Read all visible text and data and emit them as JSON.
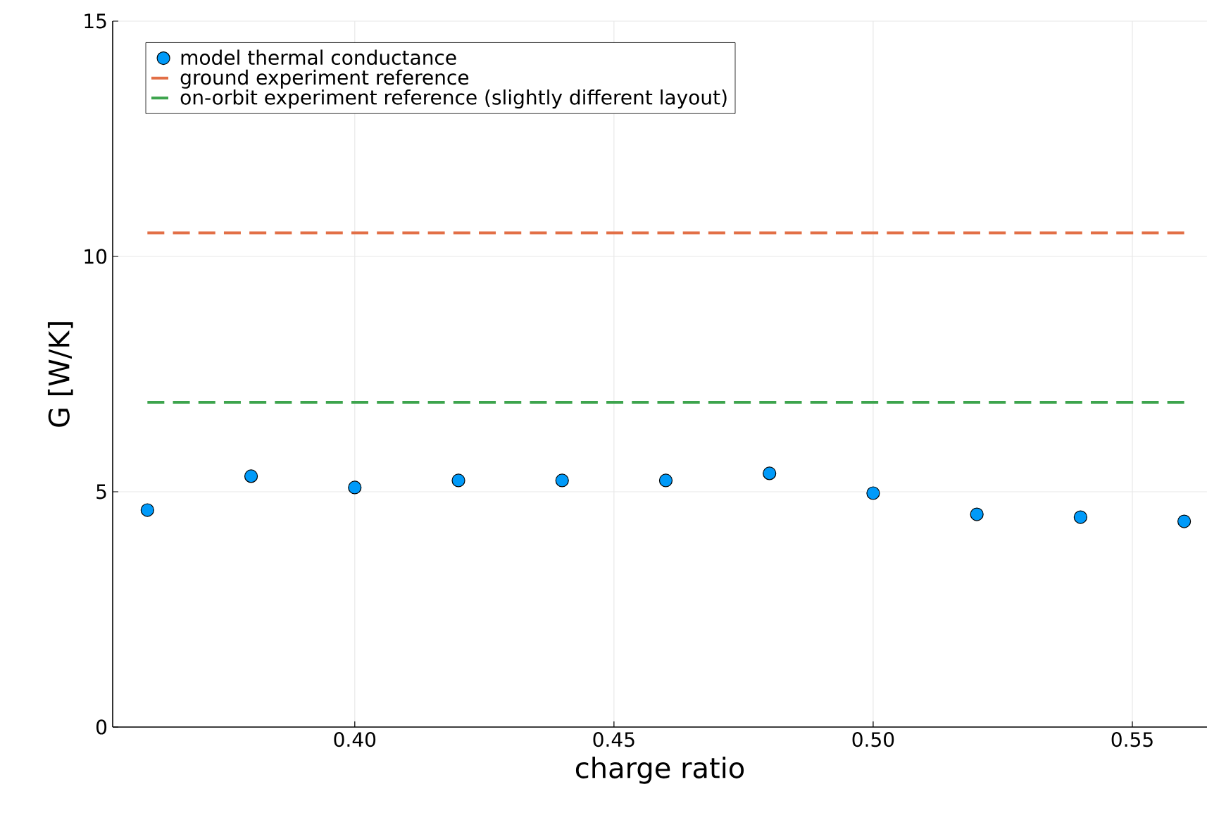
{
  "chart_data": {
    "type": "scatter",
    "xlabel": "charge ratio",
    "ylabel": "G [W/K]",
    "xlim": [
      0.3533,
      0.5644
    ],
    "ylim": [
      0,
      15
    ],
    "xticks": [
      {
        "value": 0.4,
        "label": "0.40"
      },
      {
        "value": 0.45,
        "label": "0.45"
      },
      {
        "value": 0.5,
        "label": "0.50"
      },
      {
        "value": 0.55,
        "label": "0.55"
      }
    ],
    "yticks": [
      0,
      5,
      10,
      15
    ],
    "grid": true,
    "legend": "top left",
    "marker": "circle",
    "series": [
      {
        "name": "model thermal conductance",
        "color": "#009af9",
        "x": [
          0.36,
          0.38,
          0.4,
          0.42,
          0.44,
          0.46,
          0.48,
          0.5,
          0.52,
          0.54,
          0.56
        ],
        "values": [
          4.61,
          5.33,
          5.09,
          5.24,
          5.24,
          5.24,
          5.39,
          4.97,
          4.52,
          4.46,
          4.37
        ]
      },
      {
        "name": "ground experiment reference",
        "type": "line",
        "marker": "none",
        "line_style": "dashed",
        "color": "#e26f46",
        "x": [
          0.36,
          0.56
        ],
        "values": [
          10.5,
          10.5
        ]
      },
      {
        "name": "on-orbit experiment reference (slightly different layout)",
        "type": "line",
        "marker": "none",
        "line_style": "dashed",
        "color": "#3da44d",
        "x": [
          0.36,
          0.56
        ],
        "values": [
          6.9,
          6.9
        ]
      }
    ]
  }
}
